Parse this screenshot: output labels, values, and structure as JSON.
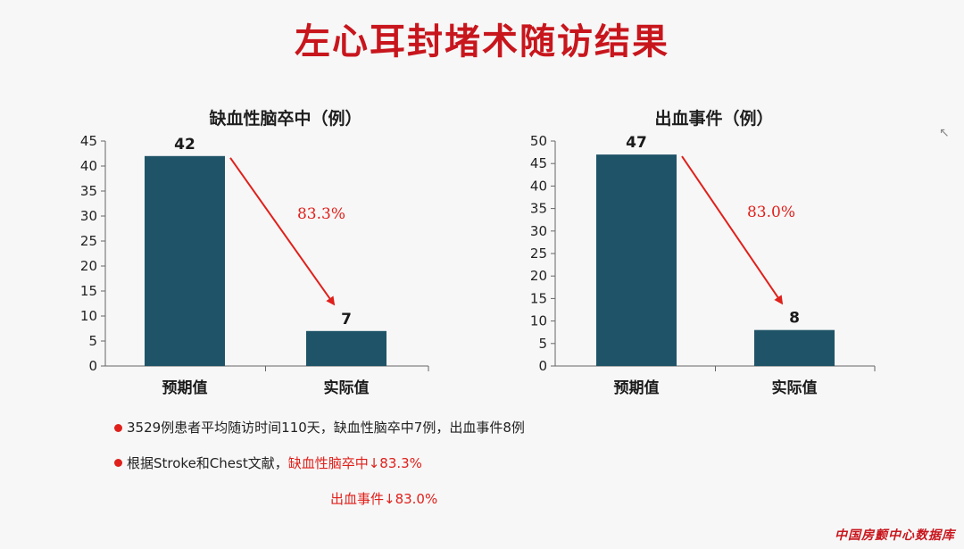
{
  "slide": {
    "title": "左心耳封堵术随访结果",
    "bullet1": "3529例患者平均随访时间110天，缺血性脑卒中7例，出血事件8例",
    "bullet2_prefix": "根据Stroke和Chest文献，",
    "bullet2_highlight": "缺血性脑卒中↓83.3%",
    "bullet3_highlight": "出血事件↓83.0%",
    "watermark": "中国房颤中心数据库",
    "accent_color": "#e0201b",
    "bar_color": "#1f5468"
  },
  "chart_data": [
    {
      "type": "bar",
      "title": "缺血性脑卒中（例）",
      "categories": [
        "预期值",
        "实际值"
      ],
      "values": [
        42,
        7
      ],
      "ylim": [
        0,
        45
      ],
      "yticks": [
        0,
        5,
        10,
        15,
        20,
        25,
        30,
        35,
        40,
        45
      ],
      "annotation": "83.3%",
      "grid": false
    },
    {
      "type": "bar",
      "title": "出血事件（例）",
      "categories": [
        "预期值",
        "实际值"
      ],
      "values": [
        47,
        8
      ],
      "ylim": [
        0,
        50
      ],
      "yticks": [
        0,
        5,
        10,
        15,
        20,
        25,
        30,
        35,
        40,
        45,
        50
      ],
      "annotation": "83.0%",
      "grid": false
    }
  ]
}
